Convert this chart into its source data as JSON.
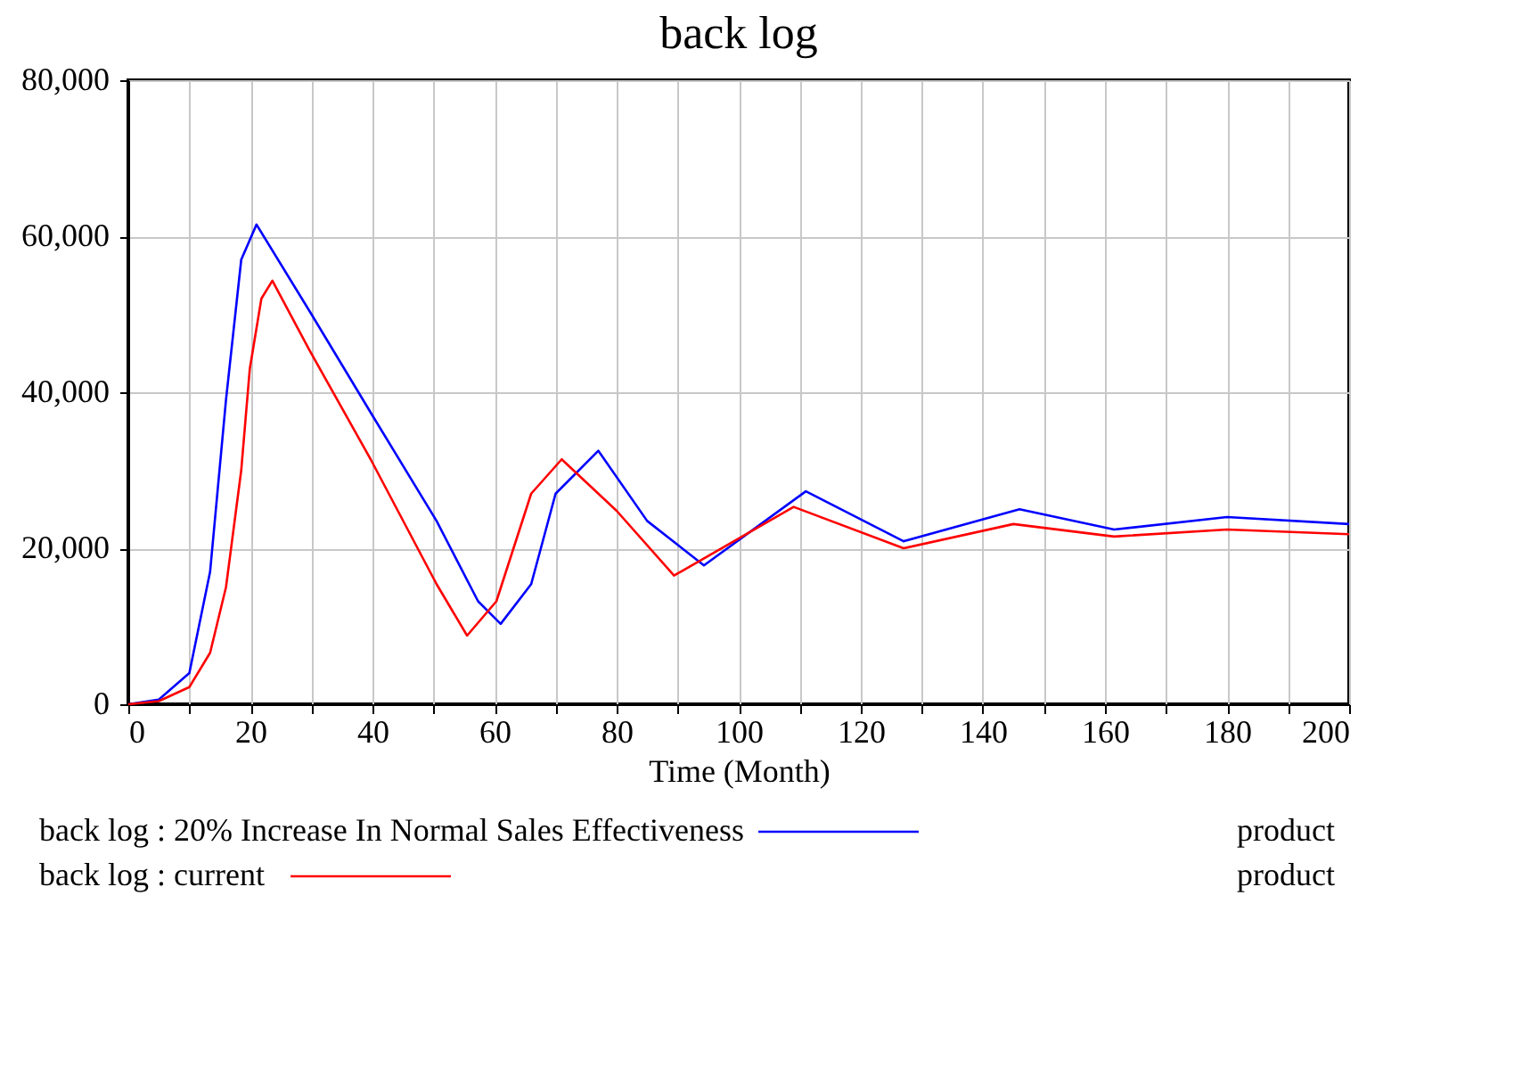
{
  "chart_data": {
    "type": "line",
    "title": "back log",
    "xlabel": "Time (Month)",
    "xlim": [
      0,
      200
    ],
    "xticks": [
      0,
      {
        "value": 10,
        "label": null
      },
      20,
      {
        "value": 30,
        "label": null
      },
      40,
      {
        "value": 50,
        "label": null
      },
      60,
      {
        "value": 70,
        "label": null
      },
      80,
      {
        "value": 90,
        "label": null
      },
      100,
      {
        "value": 110,
        "label": null
      },
      120,
      {
        "value": 130,
        "label": null
      },
      140,
      {
        "value": 150,
        "label": null
      },
      160,
      {
        "value": 170,
        "label": null
      },
      180,
      {
        "value": 190,
        "label": null
      },
      200
    ],
    "ylim": [
      0,
      80000
    ],
    "yticks": [
      {
        "value": 0,
        "label": "0"
      },
      {
        "value": 20000,
        "label": "20,000"
      },
      {
        "value": 40000,
        "label": "40,000"
      },
      {
        "value": 60000,
        "label": "60,000"
      },
      {
        "value": 80000,
        "label": "80,000"
      }
    ],
    "grid": true,
    "legend": "bottom",
    "line_style": "solid",
    "marker": "none",
    "annotations": [
      "product",
      "product"
    ],
    "series": [
      {
        "name": "back log : 20% Increase In Normal Sales Effectiveness",
        "color": "#0000ff",
        "x": [
          0,
          5,
          10,
          13.4,
          16,
          18.5,
          21,
          30,
          39.7,
          50.5,
          57.3,
          61,
          66,
          70,
          77,
          85,
          94.3,
          111,
          127,
          146,
          161.5,
          180,
          200
        ],
        "values": [
          0,
          600,
          4000,
          17000,
          39000,
          57000,
          61500,
          50000,
          37400,
          23500,
          13200,
          10300,
          15400,
          27000,
          32500,
          23500,
          17800,
          27300,
          20900,
          25000,
          22400,
          24000,
          23100
        ]
      },
      {
        "name": "back log : current",
        "color": "#ff0000",
        "x": [
          0,
          5,
          10,
          13.4,
          16,
          18.5,
          19.9,
          21.8,
          23.6,
          29.6,
          39.7,
          50.5,
          55.5,
          60.3,
          66,
          71,
          80,
          89.4,
          109,
          127,
          145,
          161.5,
          180,
          200
        ],
        "values": [
          0,
          400,
          2200,
          6600,
          15000,
          30000,
          43000,
          52000,
          54300,
          45500,
          31400,
          15400,
          8800,
          13200,
          27000,
          31400,
          24800,
          16500,
          25300,
          20000,
          23100,
          21500,
          22400,
          21800
        ]
      }
    ]
  }
}
